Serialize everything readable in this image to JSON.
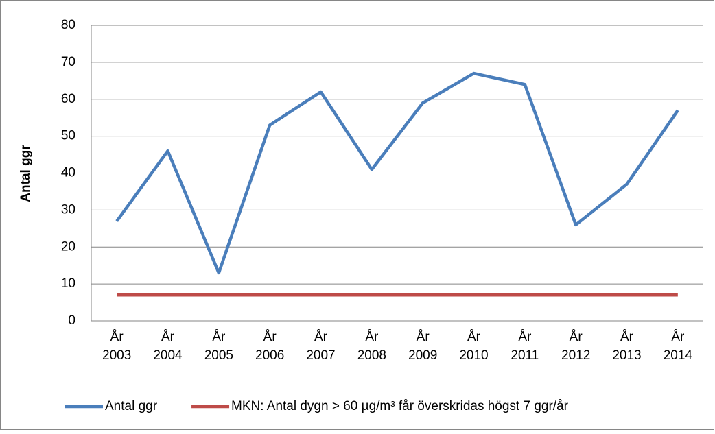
{
  "chart_data": {
    "type": "line",
    "y_label": "Antal ggr",
    "categories": [
      "År 2003",
      "År 2004",
      "År 2005",
      "År 2006",
      "År 2007",
      "År 2008",
      "År 2009",
      "År 2010",
      "År 2011",
      "År 2012",
      "År 2013",
      "År 2014"
    ],
    "series": [
      {
        "name": "Antal ggr",
        "color": "#4a7ebb",
        "values": [
          27,
          46,
          13,
          53,
          62,
          41,
          59,
          67,
          64,
          26,
          37,
          57
        ]
      },
      {
        "name": "MKN: Antal dygn > 60 µg/m³ får överskridas högst 7 ggr/år",
        "color": "#be4b48",
        "values": [
          7,
          7,
          7,
          7,
          7,
          7,
          7,
          7,
          7,
          7,
          7,
          7
        ]
      }
    ],
    "ylim": [
      0,
      80
    ],
    "yticks": [
      0,
      10,
      20,
      30,
      40,
      50,
      60,
      70,
      80
    ],
    "grid": true,
    "legend": "bottom"
  }
}
